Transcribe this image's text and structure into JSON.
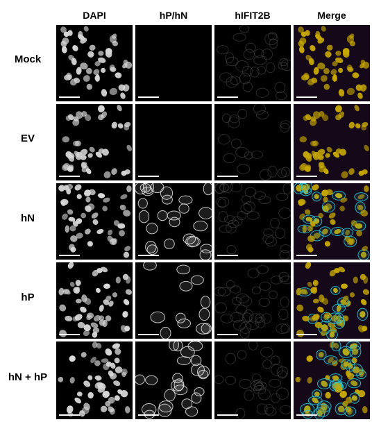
{
  "columns": [
    {
      "label": "DAPI",
      "channel": "dapi"
    },
    {
      "label": "hP/hN",
      "channel": "hp"
    },
    {
      "label": "hIFIT2B",
      "channel": "ifit"
    },
    {
      "label": "Merge",
      "channel": "merge"
    }
  ],
  "rows": [
    {
      "label": "Mock",
      "hp_signal": 0.0
    },
    {
      "label": "EV",
      "hp_signal": 0.0
    },
    {
      "label": "hN",
      "hp_signal": 0.75
    },
    {
      "label": "hP",
      "hp_signal": 0.4
    },
    {
      "label": "hN + hP",
      "hp_signal": 0.85
    }
  ],
  "colors": {
    "dapi": "#d8d8d8",
    "hp_hn": "#e6e6e6",
    "ifit": "#4a4a4a",
    "merge_nucleus": "#c8a800",
    "merge_membrane": "#28c8d8",
    "merge_bg": "#2a1030",
    "scale_bar": "#ffffff",
    "background": "#ffffff"
  }
}
